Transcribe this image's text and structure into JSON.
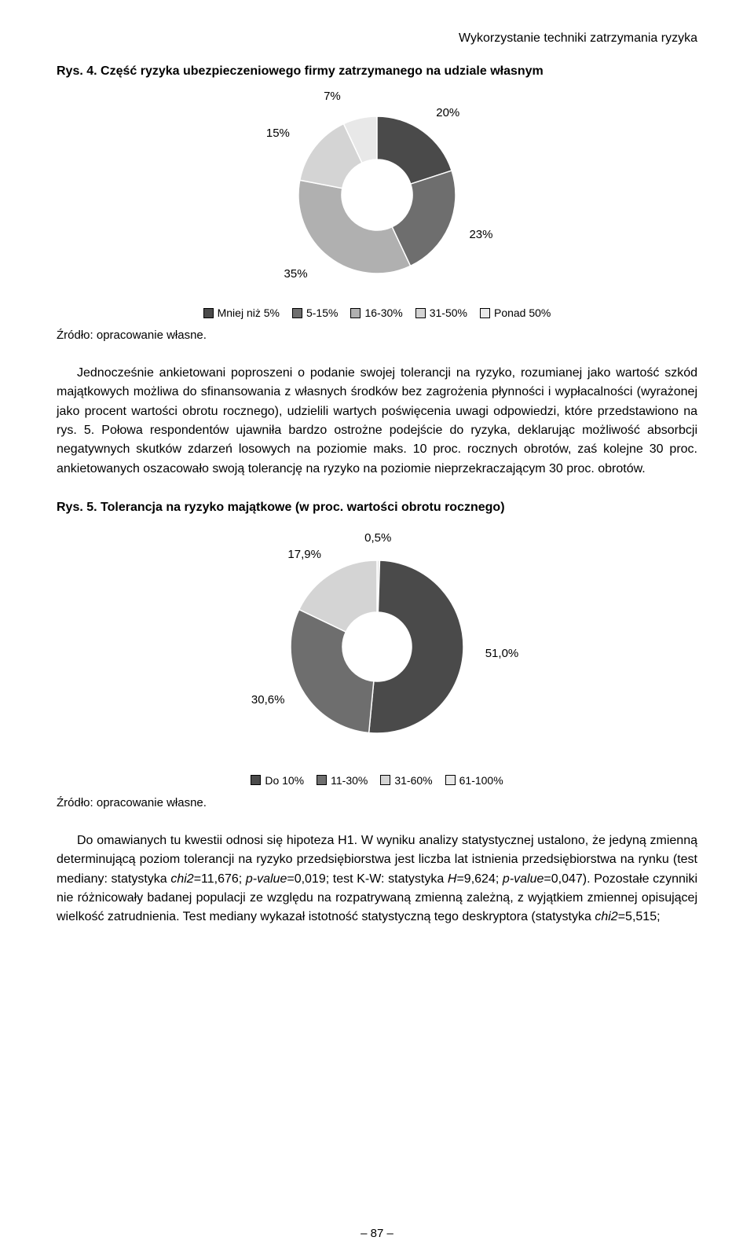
{
  "header": {
    "running_title": "Wykorzystanie techniki zatrzymania ryzyka"
  },
  "figure4": {
    "title": "Rys. 4. Część ryzyka ubezpieczeniowego firmy zatrzymanego na udziale własnym",
    "type": "donut",
    "inner_radius_ratio": 0.45,
    "background_color": "#ffffff",
    "slices": [
      {
        "label": "7%",
        "value": 7,
        "color": "#e8e8e8"
      },
      {
        "label": "20%",
        "value": 20,
        "color": "#4a4a4a"
      },
      {
        "label": "23%",
        "value": 23,
        "color": "#6e6e6e"
      },
      {
        "label": "35%",
        "value": 35,
        "color": "#b0b0b0"
      },
      {
        "label": "15%",
        "value": 15,
        "color": "#d4d4d4"
      }
    ],
    "label_fontsize": 15,
    "legend": [
      {
        "text": "Mniej niż 5%",
        "color": "#4a4a4a"
      },
      {
        "text": "5-15%",
        "color": "#6e6e6e"
      },
      {
        "text": "16-30%",
        "color": "#b0b0b0"
      },
      {
        "text": "31-50%",
        "color": "#d4d4d4"
      },
      {
        "text": "Ponad 50%",
        "color": "#e8e8e8"
      }
    ],
    "source": "Źródło: opracowanie własne."
  },
  "paragraph1": {
    "text": "Jednocześnie ankietowani poproszeni o podanie swojej tolerancji na ryzyko, rozumianej jako wartość szkód majątkowych możliwa do sfinansowania z własnych środków bez zagrożenia płynności i wypłacalności (wyrażonej jako procent wartości obrotu rocznego), udzielili wartych poświęcenia uwagi odpowiedzi, które przedstawiono na rys. 5. Połowa respondentów ujawniła bardzo ostrożne podejście do ryzyka, deklarując możliwość absorbcji negatywnych skutków zdarzeń losowych na poziomie maks. 10 proc. rocznych obrotów, zaś kolejne 30 proc. ankietowanych oszacowało swoją tolerancję na ryzyko na poziomie nieprzekraczającym 30 proc. obrotów."
  },
  "figure5": {
    "title": "Rys. 5. Tolerancja na ryzyko majątkowe (w proc. wartości obrotu rocznego)",
    "type": "donut",
    "inner_radius_ratio": 0.4,
    "background_color": "#ffffff",
    "slices": [
      {
        "label": "0,5%",
        "value": 0.5,
        "color": "#e8e8e8"
      },
      {
        "label": "51,0%",
        "value": 51.0,
        "color": "#4a4a4a"
      },
      {
        "label": "30,6%",
        "value": 30.6,
        "color": "#6e6e6e"
      },
      {
        "label": "17,9%",
        "value": 17.9,
        "color": "#d4d4d4"
      }
    ],
    "label_fontsize": 15,
    "legend": [
      {
        "text": "Do 10%",
        "color": "#4a4a4a"
      },
      {
        "text": "11-30%",
        "color": "#6e6e6e"
      },
      {
        "text": "31-60%",
        "color": "#d4d4d4"
      },
      {
        "text": "61-100%",
        "color": "#e8e8e8"
      }
    ],
    "source": "Źródło: opracowanie własne."
  },
  "paragraph2": {
    "pre": "Do omawianych tu kwestii odnosi się hipoteza H1. W wyniku analizy statystycznej ustalono, że jedyną zmienną determinującą poziom tolerancji na ryzyko przedsiębiorstwa jest liczba lat istnienia przedsiębiorstwa na rynku (test mediany: statystyka ",
    "chi1": "chi2",
    "eq1": "=11,676; ",
    "pval1": "p-value",
    "mid1": "=0,019; test K-W: statystyka ",
    "H": "H",
    "eq2": "=9,624; ",
    "pval2": "p-value",
    "mid2": "=0,047). Pozostałe czynniki nie różnicowały badanej populacji ze względu na rozpatrywaną zmienną zależną, z wyjątkiem zmiennej opisującej wielkość zatrudnienia. Test mediany wykazał istotność statystyczną tego deskryptora (statystyka ",
    "chi2": "chi2",
    "tail": "=5,515;"
  },
  "page_number": "– 87 –"
}
